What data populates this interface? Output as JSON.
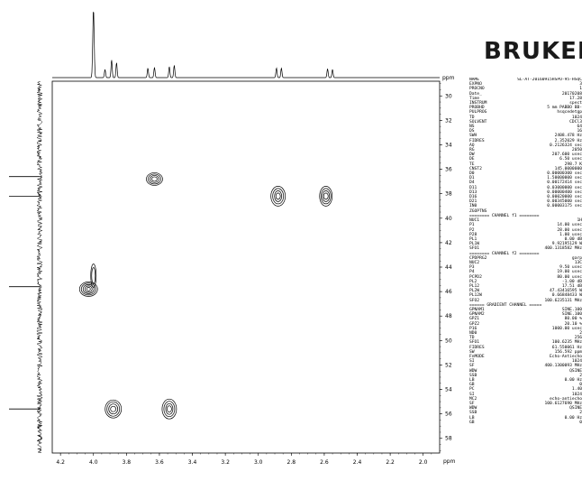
{
  "chart_data": {
    "type": "heatmap",
    "title": "",
    "x_axis": {
      "label": "ppm",
      "range": [
        4.25,
        1.9
      ],
      "ticks": [
        "4.2",
        "4.0",
        "3.8",
        "3.6",
        "3.4",
        "3.2",
        "3.0",
        "2.8",
        "2.6",
        "2.4",
        "2.2",
        "2.0"
      ],
      "reversed": true
    },
    "y_axis": {
      "label": "ppm",
      "range": [
        28.8,
        59.2
      ],
      "ticks": [
        "30",
        "32",
        "34",
        "36",
        "38",
        "40",
        "42",
        "44",
        "46",
        "48",
        "50",
        "52",
        "54",
        "56",
        "58"
      ],
      "reversed": true,
      "side": "right"
    },
    "cross_peaks": [
      {
        "x": 3.63,
        "y": 36.8
      },
      {
        "x": 2.88,
        "y": 38.2
      },
      {
        "x": 2.59,
        "y": 38.2
      },
      {
        "x": 4.0,
        "y": 44.7
      },
      {
        "x": 4.03,
        "y": 45.8
      },
      {
        "x": 3.88,
        "y": 55.6
      },
      {
        "x": 3.54,
        "y": 55.6
      }
    ],
    "f2_projection_peaks": [
      {
        "x": 4.0,
        "h": 1.0
      },
      {
        "x": 3.93,
        "h": 0.12
      },
      {
        "x": 3.89,
        "h": 0.26
      },
      {
        "x": 3.86,
        "h": 0.22
      },
      {
        "x": 3.67,
        "h": 0.14
      },
      {
        "x": 3.63,
        "h": 0.15
      },
      {
        "x": 3.54,
        "h": 0.16
      },
      {
        "x": 3.51,
        "h": 0.18
      },
      {
        "x": 2.89,
        "h": 0.14
      },
      {
        "x": 2.86,
        "h": 0.14
      },
      {
        "x": 2.58,
        "h": 0.13
      },
      {
        "x": 2.55,
        "h": 0.12
      }
    ],
    "f1_projection_peaks": [
      36.6,
      38.2,
      45.6,
      55.6
    ],
    "grid": false
  },
  "logo": {
    "text": "BRUKER"
  },
  "params": [
    [
      "NAME",
      "SL-AT-20160915HSPO-95-HSQC"
    ],
    [
      "EXPNO",
      "3"
    ],
    [
      "PROCNO",
      "1"
    ],
    [
      "Date_",
      "20170208"
    ],
    [
      "Time",
      "17.28"
    ],
    [
      "INSTRUM",
      "spect"
    ],
    [
      "PROBHD",
      "5 mm PABBO BB-"
    ],
    [
      "PULPROG",
      "hsqcedetgp"
    ],
    [
      "TD",
      "1024"
    ],
    [
      "SOLVENT",
      "CDCl3"
    ],
    [
      "NS",
      "64"
    ],
    [
      "DS",
      "16"
    ],
    [
      "SWH",
      "2408.478 Hz"
    ],
    [
      "FIDRES",
      "2.352029 Hz"
    ],
    [
      "AQ",
      "0.2126324 sec"
    ],
    [
      "RG",
      "2050"
    ],
    [
      "DW",
      "207.600 usec"
    ],
    [
      "DE",
      "6.50 usec"
    ],
    [
      "TE",
      "298.7 K"
    ],
    [
      "CNST2",
      "145.0000000"
    ],
    [
      "D0",
      "0.00000300 sec"
    ],
    [
      "D1",
      "1.50000000 sec"
    ],
    [
      "D4",
      "0.00172414 sec"
    ],
    [
      "D11",
      "0.03000000 sec"
    ],
    [
      "D13",
      "0.00000400 sec"
    ],
    [
      "D16",
      "0.00020000 sec"
    ],
    [
      "D21",
      "0.00345000 sec"
    ],
    [
      "IN0",
      "0.00003175 sec"
    ],
    [
      "ZGOPTNS",
      ""
    ],
    [
      "",
      ""
    ],
    [
      "======== CHANNEL f1 ========",
      ""
    ],
    [
      "NUC1",
      "1H"
    ],
    [
      "P1",
      "14.00 usec"
    ],
    [
      "P2",
      "28.00 usec"
    ],
    [
      "P28",
      "1.00 usec"
    ],
    [
      "PL1",
      "0.00 dB"
    ],
    [
      "PL1W",
      "9.92195129 W"
    ],
    [
      "SFO1",
      "400.1318582 MHz"
    ],
    [
      "",
      ""
    ],
    [
      "======== CHANNEL f2 ========",
      ""
    ],
    [
      "CPDPRG2",
      "garp"
    ],
    [
      "NUC2",
      "13C"
    ],
    [
      "P3",
      "9.50 usec"
    ],
    [
      "P4",
      "19.00 usec"
    ],
    [
      "PCPD2",
      "80.00 usec"
    ],
    [
      "PL2",
      "-1.00 dB"
    ],
    [
      "PL12",
      "17.51 dB"
    ],
    [
      "PL2W",
      "47.43416595 W"
    ],
    [
      "PL12W",
      "0.66848433 W"
    ],
    [
      "SFO2",
      "100.6235131 MHz"
    ],
    [
      "",
      ""
    ],
    [
      "====== GRADIENT CHANNEL =====",
      ""
    ],
    [
      "GPNAM1",
      "SINE.100"
    ],
    [
      "GPNAM2",
      "SINE.100"
    ],
    [
      "GPZ1",
      "80.00 %"
    ],
    [
      "GPZ2",
      "20.10 %"
    ],
    [
      "P16",
      "1000.00 usec"
    ],
    [
      "ND0",
      "2"
    ],
    [
      "TD",
      "256"
    ],
    [
      "SFO1",
      "100.6235 MHz"
    ],
    [
      "FIDRES",
      "61.550061 Hz"
    ],
    [
      "SW",
      "156.592 ppm"
    ],
    [
      "FnMODE",
      "Echo-Antiecho"
    ],
    [
      "SI",
      "1024"
    ],
    [
      "SF",
      "400.1300093 MHz"
    ],
    [
      "WDW",
      "QSINE"
    ],
    [
      "SSB",
      "2"
    ],
    [
      "LB",
      "0.00 Hz"
    ],
    [
      "GB",
      "0"
    ],
    [
      "PC",
      "1.40"
    ],
    [
      "SI",
      "1024"
    ],
    [
      "MC2",
      "echo-antiecho"
    ],
    [
      "SF",
      "100.6127690 MHz"
    ],
    [
      "WDW",
      "QSINE"
    ],
    [
      "SSB",
      "2"
    ],
    [
      "LB",
      "0.00 Hz"
    ],
    [
      "GB",
      "0"
    ]
  ]
}
